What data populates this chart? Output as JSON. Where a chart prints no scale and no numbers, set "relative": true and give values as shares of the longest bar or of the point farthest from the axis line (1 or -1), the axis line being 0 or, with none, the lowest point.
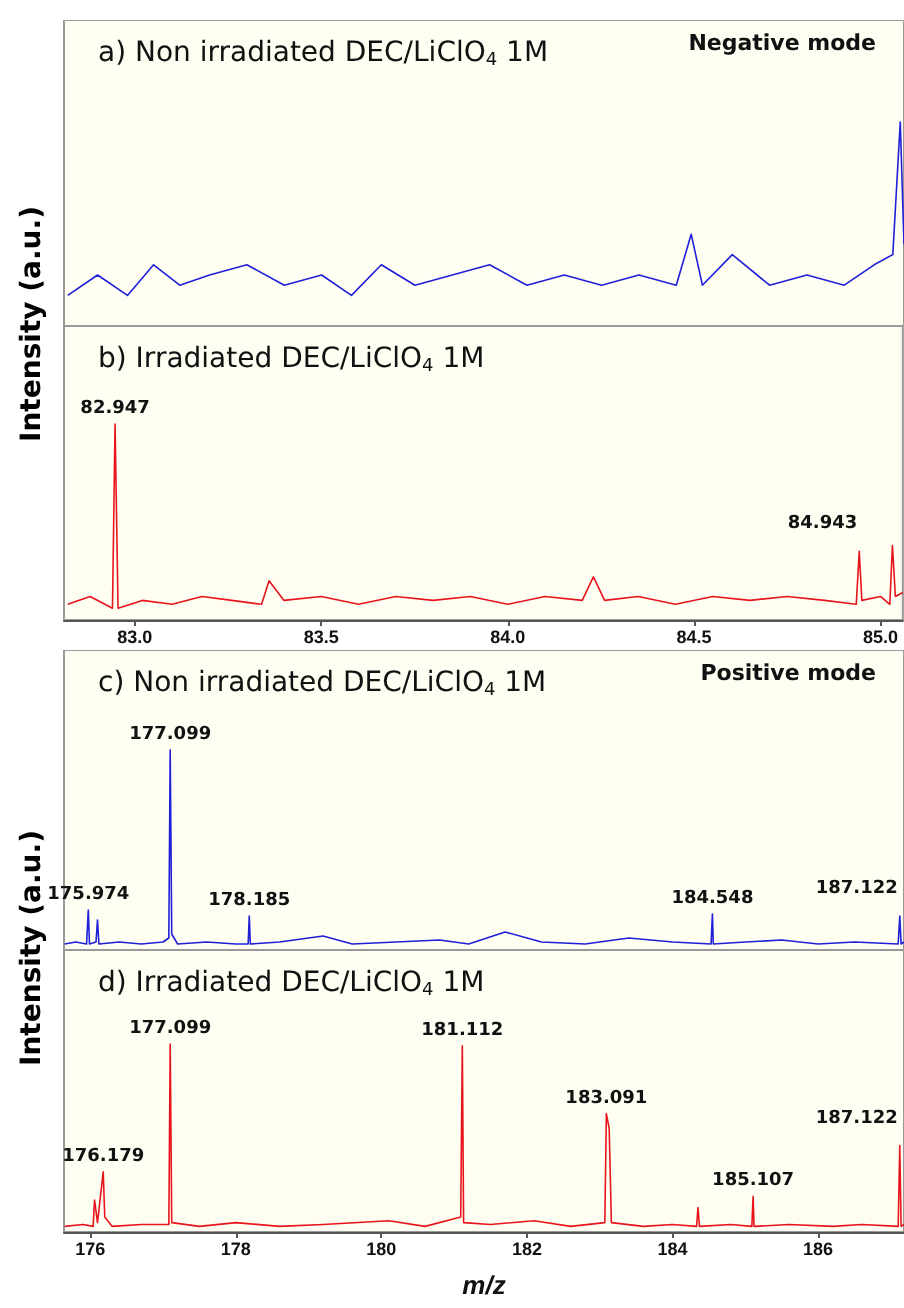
{
  "chart_data": [
    {
      "type": "line",
      "relative": true,
      "title": "a) Non irradiated DEC/LiClO$_{4}$ 1M",
      "ylabel": "Intensity (a.u.)",
      "annotations": [
        "Negative mode"
      ],
      "xlim": [
        82.81,
        85.06
      ],
      "tick_labels": false,
      "marker": "none",
      "series": [
        {
          "color": "#1f1fd8",
          "x": [
            82.82,
            82.9,
            82.98,
            83.05,
            83.12,
            83.2,
            83.3,
            83.4,
            83.5,
            83.58,
            83.66,
            83.75,
            83.85,
            83.95,
            84.05,
            84.15,
            84.25,
            84.35,
            84.45,
            84.49,
            84.52,
            84.6,
            84.7,
            84.8,
            84.9,
            84.98,
            85.03,
            85.05,
            85.06
          ],
          "values": [
            0.15,
            0.25,
            0.15,
            0.3,
            0.2,
            0.25,
            0.3,
            0.2,
            0.25,
            0.15,
            0.3,
            0.2,
            0.25,
            0.3,
            0.2,
            0.25,
            0.2,
            0.25,
            0.2,
            0.45,
            0.2,
            0.35,
            0.2,
            0.25,
            0.2,
            0.3,
            0.35,
            1,
            0.4
          ]
        }
      ]
    },
    {
      "type": "line",
      "relative": true,
      "title": "b) Irradiated DEC/LiClO$_{4}$ 1M",
      "annotations": [
        {
          "text": "82.947",
          "x": 82.947,
          "y": 1
        },
        {
          "text": "84.943",
          "x": 84.943,
          "y": 0.35
        }
      ],
      "xlim": [
        82.81,
        85.06
      ],
      "xticks": [
        {
          "value": 83,
          "label": "83.0"
        },
        {
          "value": 83.5,
          "label": "83.5"
        },
        {
          "value": 84,
          "label": "84.0"
        },
        {
          "value": 84.5,
          "label": "84.5"
        },
        {
          "value": 85,
          "label": "85.0"
        }
      ],
      "tick_labels": "x",
      "marker": "none",
      "series": [
        {
          "color": "#e8141c",
          "x": [
            82.82,
            82.88,
            82.94,
            82.947,
            82.955,
            83.02,
            83.1,
            83.18,
            83.26,
            83.34,
            83.36,
            83.4,
            83.5,
            83.6,
            83.7,
            83.8,
            83.9,
            84.0,
            84.1,
            84.2,
            84.23,
            84.26,
            84.35,
            84.45,
            84.55,
            84.65,
            84.75,
            84.85,
            84.935,
            84.943,
            84.95,
            85.0,
            85.025,
            85.032,
            85.04,
            85.06
          ],
          "values": [
            0.08,
            0.12,
            0.06,
            1,
            0.06,
            0.1,
            0.08,
            0.12,
            0.1,
            0.08,
            0.2,
            0.1,
            0.12,
            0.08,
            0.12,
            0.1,
            0.12,
            0.08,
            0.12,
            0.1,
            0.22,
            0.1,
            0.12,
            0.08,
            0.12,
            0.1,
            0.12,
            0.1,
            0.08,
            0.35,
            0.1,
            0.12,
            0.08,
            0.38,
            0.12,
            0.14
          ]
        }
      ]
    },
    {
      "type": "line",
      "relative": true,
      "title": "c) Non irradiated DEC/LiClO$_{4}$ 1M",
      "ylabel": "Intensity (a.u.)",
      "annotations": [
        "Positive mode",
        {
          "text": "175.974",
          "x": 175.974,
          "y": 0.2
        },
        {
          "text": "177.099",
          "x": 177.099,
          "y": 1
        },
        {
          "text": "178.185",
          "x": 178.185,
          "y": 0.17
        },
        {
          "text": "184.548",
          "x": 184.548,
          "y": 0.18
        },
        {
          "text": "187.122",
          "x": 187.122,
          "y": 0.17
        }
      ],
      "xlim": [
        175.64,
        187.18
      ],
      "tick_labels": false,
      "marker": "none",
      "series": [
        {
          "color": "#1f1fd8",
          "x": [
            175.65,
            175.8,
            175.95,
            175.974,
            175.99,
            176.08,
            176.1,
            176.12,
            176.4,
            176.7,
            177.0,
            177.08,
            177.099,
            177.12,
            177.2,
            177.6,
            178.0,
            178.17,
            178.185,
            178.2,
            178.6,
            179.2,
            179.6,
            180.2,
            180.8,
            181.2,
            181.7,
            182.2,
            182.8,
            183.4,
            184.0,
            184.53,
            184.548,
            184.56,
            185.0,
            185.5,
            186.0,
            186.5,
            187.1,
            187.122,
            187.14,
            187.18
          ],
          "values": [
            0.03,
            0.04,
            0.03,
            0.2,
            0.03,
            0.04,
            0.15,
            0.03,
            0.04,
            0.03,
            0.04,
            0.06,
            1,
            0.08,
            0.03,
            0.04,
            0.03,
            0.03,
            0.17,
            0.03,
            0.04,
            0.07,
            0.03,
            0.04,
            0.05,
            0.03,
            0.09,
            0.04,
            0.03,
            0.06,
            0.04,
            0.03,
            0.18,
            0.03,
            0.04,
            0.05,
            0.03,
            0.04,
            0.03,
            0.17,
            0.03,
            0.04
          ]
        }
      ]
    },
    {
      "type": "line",
      "relative": true,
      "title": "d) Irradiated DEC/LiClO$_{4}$ 1M",
      "xlabel": "m/z",
      "annotations": [
        {
          "text": "176.179",
          "x": 176.179,
          "y": 0.32
        },
        {
          "text": "177.099",
          "x": 177.099,
          "y": 1
        },
        {
          "text": "181.112",
          "x": 181.112,
          "y": 0.99
        },
        {
          "text": "183.091",
          "x": 183.091,
          "y": 0.63
        },
        {
          "text": "185.107",
          "x": 185.107,
          "y": 0.19
        },
        {
          "text": "187.122",
          "x": 187.122,
          "y": 0.46
        }
      ],
      "xlim": [
        175.64,
        187.18
      ],
      "xticks": [
        176,
        178,
        180,
        182,
        184,
        186
      ],
      "tick_labels": "x",
      "marker": "none",
      "series": [
        {
          "color": "#e8141c",
          "x": [
            175.65,
            175.9,
            176.04,
            176.06,
            176.1,
            176.179,
            176.2,
            176.3,
            176.7,
            177.08,
            177.099,
            177.12,
            177.5,
            178.0,
            178.6,
            179.2,
            180.1,
            180.6,
            181.09,
            181.112,
            181.13,
            181.5,
            182.1,
            182.6,
            183.07,
            183.091,
            183.13,
            183.16,
            183.6,
            184.0,
            184.33,
            184.35,
            184.37,
            184.8,
            185.09,
            185.107,
            185.12,
            185.6,
            186.2,
            186.6,
            187.1,
            187.122,
            187.14,
            187.18
          ],
          "values": [
            0.03,
            0.04,
            0.03,
            0.17,
            0.05,
            0.32,
            0.08,
            0.03,
            0.04,
            0.04,
            1,
            0.05,
            0.03,
            0.05,
            0.03,
            0.04,
            0.06,
            0.03,
            0.08,
            0.99,
            0.05,
            0.04,
            0.06,
            0.03,
            0.05,
            0.63,
            0.55,
            0.05,
            0.03,
            0.04,
            0.03,
            0.13,
            0.03,
            0.04,
            0.03,
            0.19,
            0.03,
            0.04,
            0.03,
            0.04,
            0.03,
            0.46,
            0.03,
            0.04
          ]
        }
      ]
    }
  ]
}
